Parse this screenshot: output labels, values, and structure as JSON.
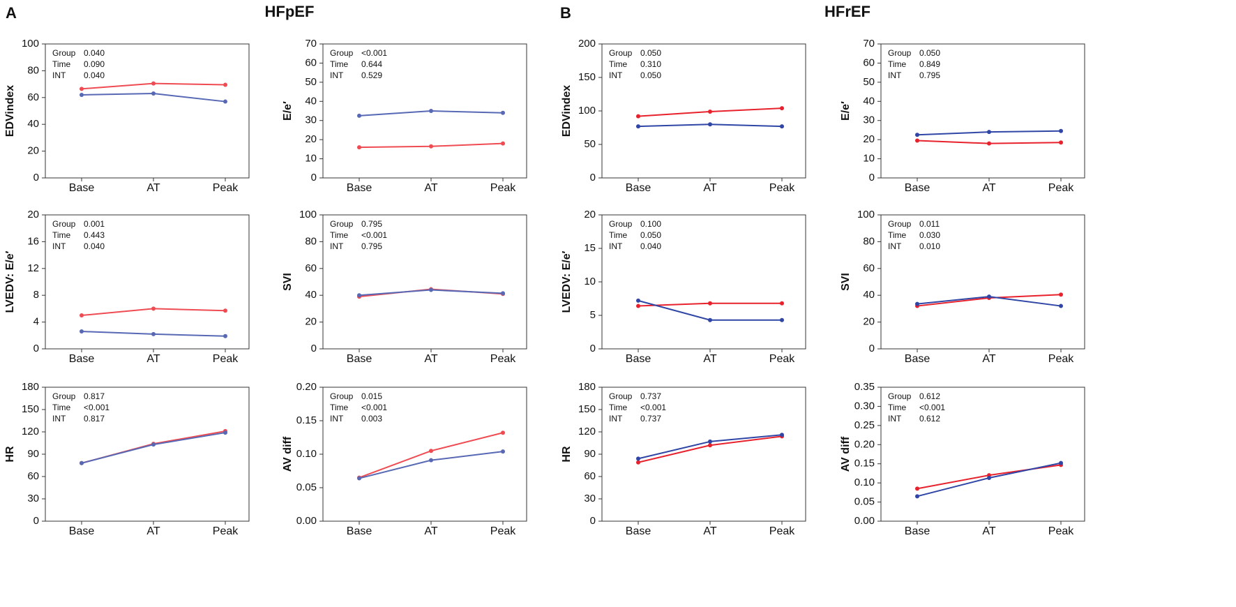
{
  "panels": [
    {
      "label": "A",
      "title": "HFpEF"
    },
    {
      "label": "B",
      "title": "HFrEF"
    }
  ],
  "chart_data": [
    {
      "type": "line",
      "ylabel": "EDVindex",
      "categories": [
        "Base",
        "AT",
        "Peak"
      ],
      "ylim": [
        0,
        100
      ],
      "yticks": [
        0,
        20,
        40,
        60,
        80,
        100
      ],
      "stats": [
        {
          "label": "Group",
          "value": "0.040"
        },
        {
          "label": "Time",
          "value": "0.090"
        },
        {
          "label": "INT",
          "value": "0.040"
        }
      ],
      "series": [
        {
          "color": "#ef4b52",
          "values": [
            66.5,
            70.5,
            69.5
          ]
        },
        {
          "color": "#5768b4",
          "values": [
            62,
            63,
            57
          ]
        }
      ]
    },
    {
      "type": "line",
      "ylabel": "E/e′",
      "categories": [
        "Base",
        "AT",
        "Peak"
      ],
      "ylim": [
        0,
        70
      ],
      "yticks": [
        0,
        10,
        20,
        30,
        40,
        50,
        60,
        70
      ],
      "stats": [
        {
          "label": "Group",
          "value": "<0.001"
        },
        {
          "label": "Time",
          "value": "0.644"
        },
        {
          "label": "INT",
          "value": "0.529"
        }
      ],
      "series": [
        {
          "color": "#ef4b52",
          "values": [
            16,
            16.5,
            18
          ]
        },
        {
          "color": "#5768b4",
          "values": [
            32.5,
            35,
            34
          ]
        }
      ]
    },
    {
      "type": "line",
      "ylabel": "EDVindex",
      "categories": [
        "Base",
        "AT",
        "Peak"
      ],
      "ylim": [
        0,
        200
      ],
      "yticks": [
        0,
        50,
        100,
        150,
        200
      ],
      "stats": [
        {
          "label": "Group",
          "value": "0.050"
        },
        {
          "label": "Time",
          "value": "0.310"
        },
        {
          "label": "INT",
          "value": "0.050"
        }
      ],
      "series": [
        {
          "color": "#e8222d",
          "values": [
            92,
            99,
            104
          ]
        },
        {
          "color": "#2f46a6",
          "values": [
            77,
            80,
            77
          ]
        }
      ]
    },
    {
      "type": "line",
      "ylabel": "E/e′",
      "categories": [
        "Base",
        "AT",
        "Peak"
      ],
      "ylim": [
        0,
        70
      ],
      "yticks": [
        0,
        10,
        20,
        30,
        40,
        50,
        60,
        70
      ],
      "stats": [
        {
          "label": "Group",
          "value": "0.050"
        },
        {
          "label": "Time",
          "value": "0.849"
        },
        {
          "label": "INT",
          "value": "0.795"
        }
      ],
      "series": [
        {
          "color": "#e8222d",
          "values": [
            19.5,
            18,
            18.5
          ]
        },
        {
          "color": "#2f46a6",
          "values": [
            22.5,
            24,
            24.5
          ]
        }
      ]
    },
    {
      "type": "line",
      "ylabel": "LVEDV: E/e′",
      "categories": [
        "Base",
        "AT",
        "Peak"
      ],
      "ylim": [
        0,
        20
      ],
      "yticks": [
        0,
        4,
        8,
        12,
        16,
        20
      ],
      "stats": [
        {
          "label": "Group",
          "value": "0.001"
        },
        {
          "label": "Time",
          "value": "0.443"
        },
        {
          "label": "INT",
          "value": "0.040"
        }
      ],
      "series": [
        {
          "color": "#ef4b52",
          "values": [
            5,
            6,
            5.7
          ]
        },
        {
          "color": "#5768b4",
          "values": [
            2.6,
            2.2,
            1.9
          ]
        }
      ]
    },
    {
      "type": "line",
      "ylabel": "SVI",
      "categories": [
        "Base",
        "AT",
        "Peak"
      ],
      "ylim": [
        0,
        100
      ],
      "yticks": [
        0,
        20,
        40,
        60,
        80,
        100
      ],
      "stats": [
        {
          "label": "Group",
          "value": "0.795"
        },
        {
          "label": "Time",
          "value": "<0.001"
        },
        {
          "label": "INT",
          "value": "0.795"
        }
      ],
      "series": [
        {
          "color": "#ef4b52",
          "values": [
            39,
            44.5,
            41
          ]
        },
        {
          "color": "#5768b4",
          "values": [
            40,
            44,
            41.5
          ]
        }
      ]
    },
    {
      "type": "line",
      "ylabel": "LVEDV: E/e′",
      "categories": [
        "Base",
        "AT",
        "Peak"
      ],
      "ylim": [
        0,
        20
      ],
      "yticks": [
        0,
        5,
        10,
        15,
        20
      ],
      "stats": [
        {
          "label": "Group",
          "value": "0.100"
        },
        {
          "label": "Time",
          "value": "0.050"
        },
        {
          "label": "INT",
          "value": "0.040"
        }
      ],
      "series": [
        {
          "color": "#e8222d",
          "values": [
            6.4,
            6.8,
            6.8
          ]
        },
        {
          "color": "#2f46a6",
          "values": [
            7.2,
            4.3,
            4.3
          ]
        }
      ]
    },
    {
      "type": "line",
      "ylabel": "SVI",
      "categories": [
        "Base",
        "AT",
        "Peak"
      ],
      "ylim": [
        0,
        100
      ],
      "yticks": [
        0,
        20,
        40,
        60,
        80,
        100
      ],
      "stats": [
        {
          "label": "Group",
          "value": "0.011"
        },
        {
          "label": "Time",
          "value": "0.030"
        },
        {
          "label": "INT",
          "value": "0.010"
        }
      ],
      "series": [
        {
          "color": "#e8222d",
          "values": [
            32,
            38,
            40.5
          ]
        },
        {
          "color": "#2f46a6",
          "values": [
            33.5,
            39,
            32
          ]
        }
      ]
    },
    {
      "type": "line",
      "ylabel": "HR",
      "categories": [
        "Base",
        "AT",
        "Peak"
      ],
      "ylim": [
        0,
        180
      ],
      "yticks": [
        0,
        30,
        60,
        90,
        120,
        150,
        180
      ],
      "stats": [
        {
          "label": "Group",
          "value": "0.817"
        },
        {
          "label": "Time",
          "value": "<0.001"
        },
        {
          "label": "INT",
          "value": "0.817"
        }
      ],
      "series": [
        {
          "color": "#ef4b52",
          "values": [
            78,
            104,
            121
          ]
        },
        {
          "color": "#5768b4",
          "values": [
            78,
            103,
            119
          ]
        }
      ]
    },
    {
      "type": "line",
      "ylabel": "AV diff",
      "categories": [
        "Base",
        "AT",
        "Peak"
      ],
      "ylim": [
        0,
        0.2
      ],
      "yticks": [
        {
          "value": 0,
          "label": "0.00"
        },
        0.05,
        {
          "value": 0.1,
          "label": "0.10"
        },
        0.15,
        {
          "value": 0.2,
          "label": "0.20"
        }
      ],
      "stats": [
        {
          "label": "Group",
          "value": "0.015"
        },
        {
          "label": "Time",
          "value": "<0.001"
        },
        {
          "label": "INT",
          "value": "0.003"
        }
      ],
      "series": [
        {
          "color": "#ef4b52",
          "values": [
            0.065,
            0.105,
            0.132
          ]
        },
        {
          "color": "#5768b4",
          "values": [
            0.064,
            0.091,
            0.104
          ]
        }
      ]
    },
    {
      "type": "line",
      "ylabel": "HR",
      "categories": [
        "Base",
        "AT",
        "Peak"
      ],
      "ylim": [
        0,
        180
      ],
      "yticks": [
        0,
        30,
        60,
        90,
        120,
        150,
        180
      ],
      "stats": [
        {
          "label": "Group",
          "value": "0.737"
        },
        {
          "label": "Time",
          "value": "<0.001"
        },
        {
          "label": "INT",
          "value": "0.737"
        }
      ],
      "series": [
        {
          "color": "#e8222d",
          "values": [
            79,
            102,
            114
          ]
        },
        {
          "color": "#2f46a6",
          "values": [
            84,
            107,
            116
          ]
        }
      ]
    },
    {
      "type": "line",
      "ylabel": "AV diff",
      "categories": [
        "Base",
        "AT",
        "Peak"
      ],
      "ylim": [
        0,
        0.35
      ],
      "yticks": [
        {
          "value": 0,
          "label": "0.00"
        },
        0.05,
        {
          "value": 0.1,
          "label": "0.10"
        },
        0.15,
        {
          "value": 0.2,
          "label": "0.20"
        },
        0.25,
        {
          "value": 0.3,
          "label": "0.30"
        },
        0.35
      ],
      "stats": [
        {
          "label": "Group",
          "value": "0.612"
        },
        {
          "label": "Time",
          "value": "<0.001"
        },
        {
          "label": "INT",
          "value": "0.612"
        }
      ],
      "series": [
        {
          "color": "#e8222d",
          "values": [
            0.085,
            0.12,
            0.147
          ]
        },
        {
          "color": "#2f46a6",
          "values": [
            0.065,
            0.113,
            0.152
          ]
        }
      ]
    }
  ]
}
